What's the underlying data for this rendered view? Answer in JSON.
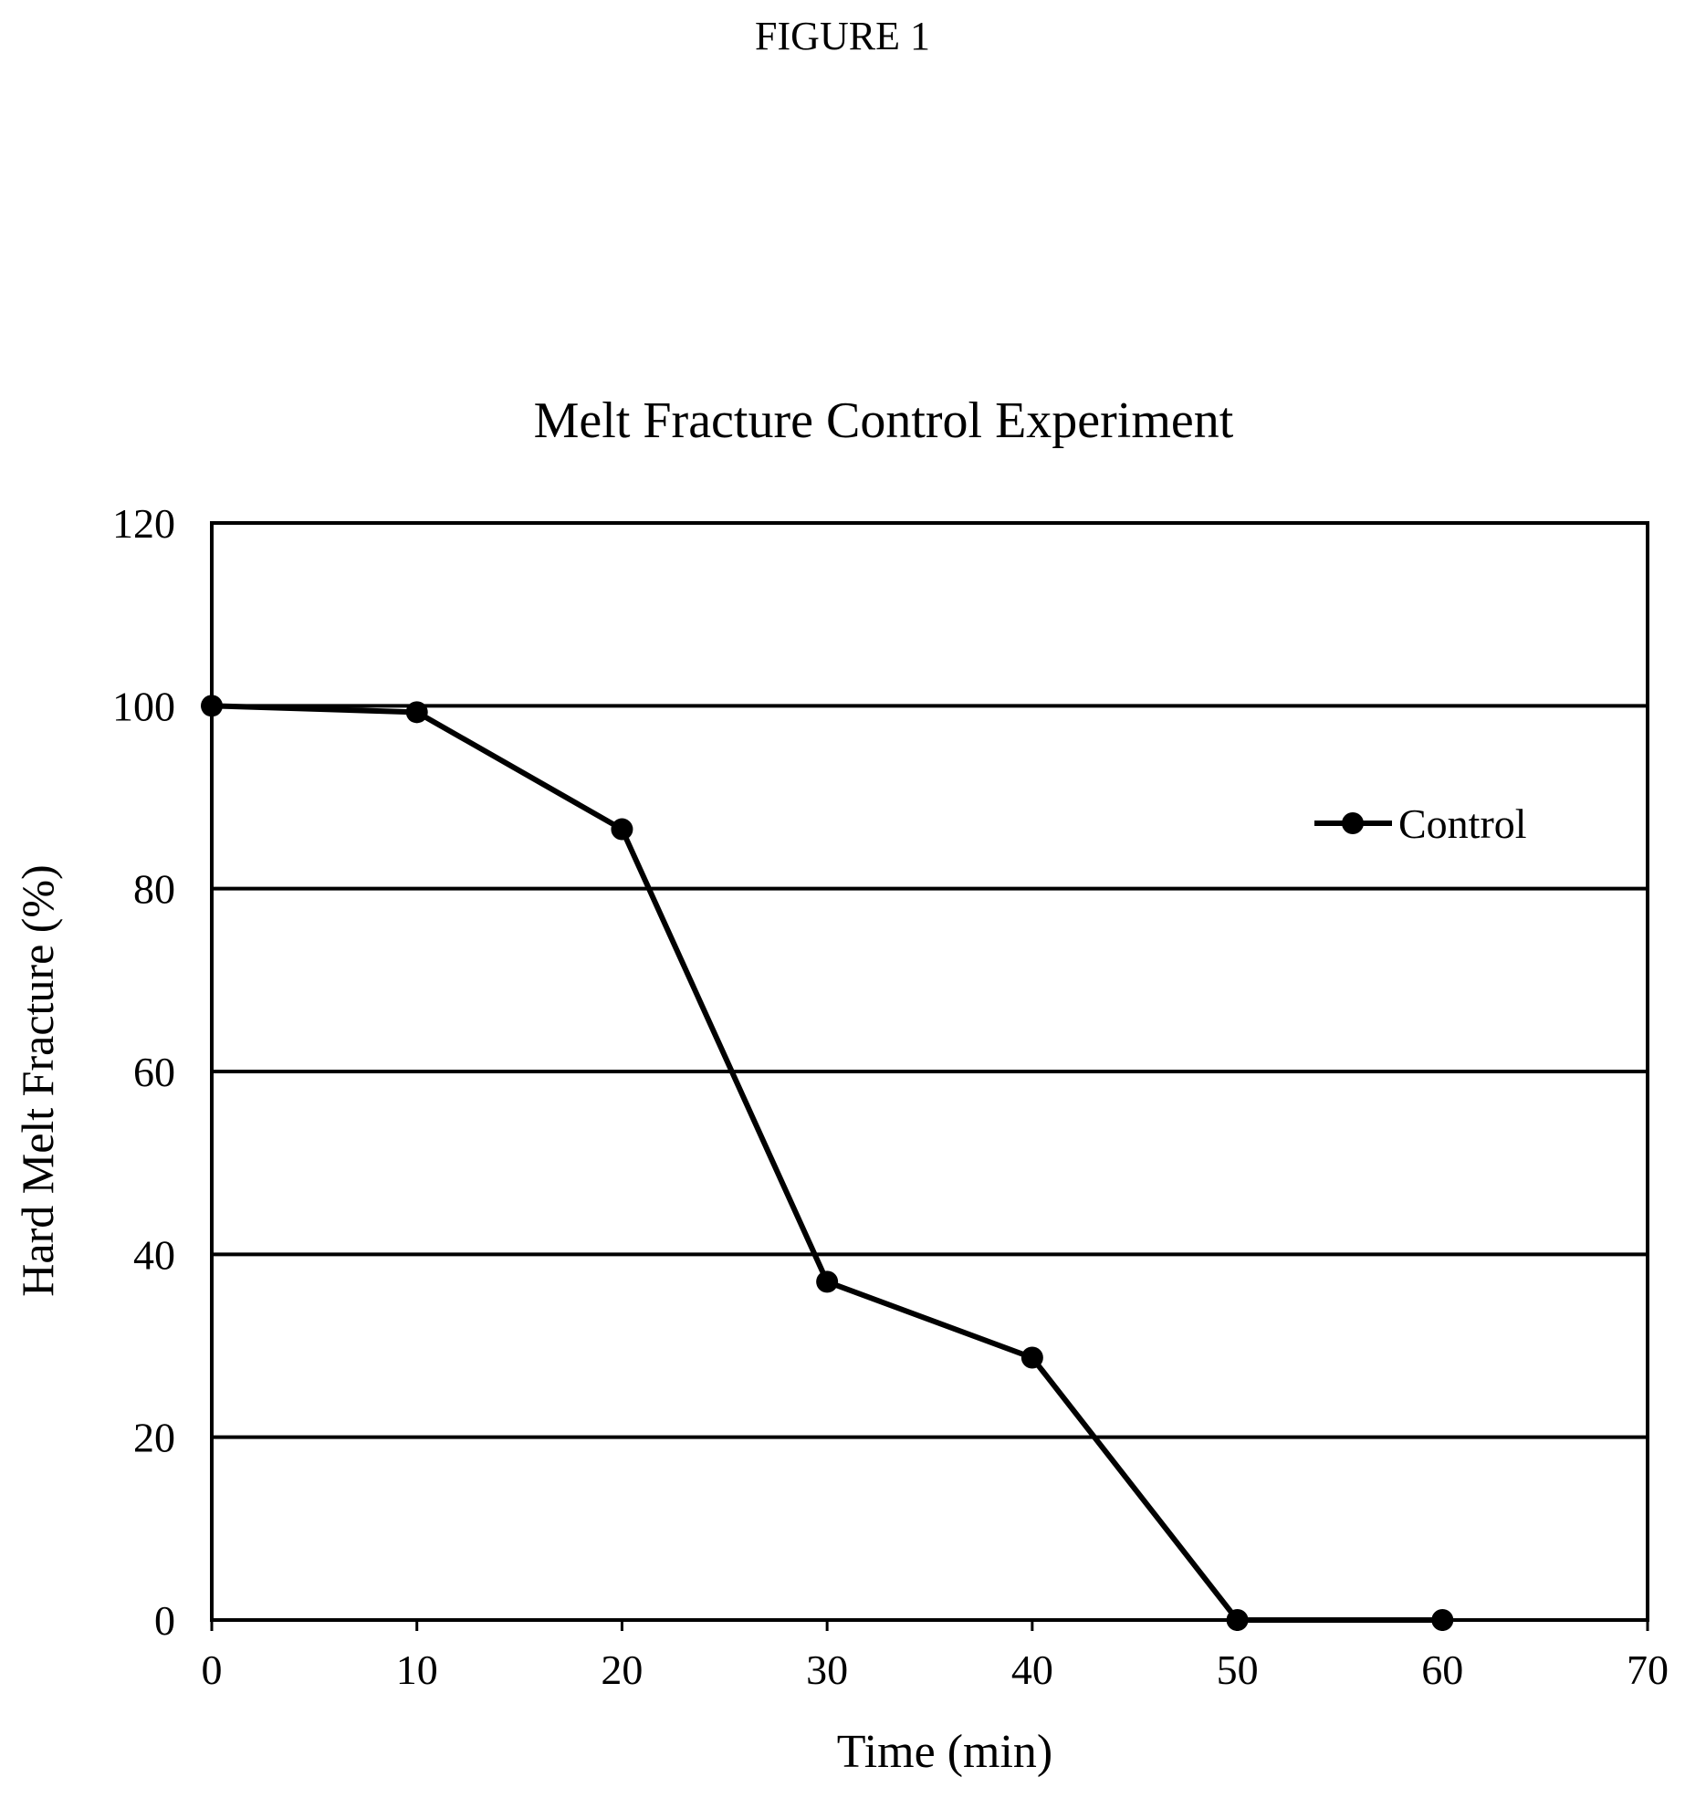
{
  "figure_label": "FIGURE 1",
  "chart_data": {
    "type": "line",
    "title": "Melt Fracture Control Experiment",
    "xlabel": "Time (min)",
    "ylabel": "Hard Melt Fracture (%)",
    "xlim": [
      0,
      70
    ],
    "ylim": [
      0,
      120
    ],
    "xticks": [
      0,
      10,
      20,
      30,
      40,
      50,
      60,
      70
    ],
    "yticks": [
      0,
      20,
      40,
      60,
      80,
      100,
      120
    ],
    "grid": "horizontal",
    "legend_position": "right",
    "series": [
      {
        "name": "Control",
        "color": "#000000",
        "marker": "circle",
        "x": [
          0,
          10,
          20,
          30,
          40,
          50,
          60
        ],
        "y": [
          100,
          99.3,
          86.5,
          37,
          28.7,
          0,
          0
        ]
      }
    ]
  }
}
